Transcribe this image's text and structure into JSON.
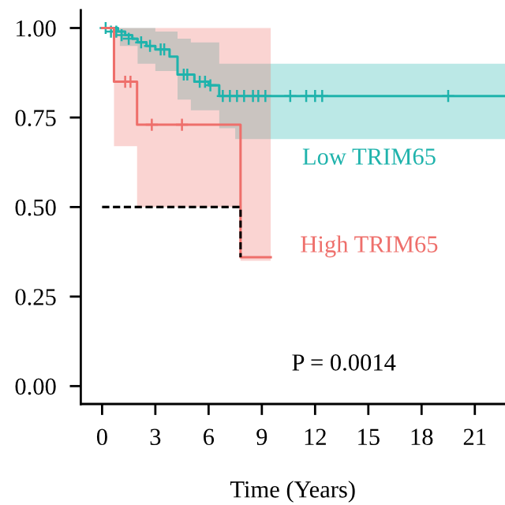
{
  "chart_data": {
    "type": "step",
    "xlabel": "Time (Years)",
    "xlim": [
      -1.2,
      22.7
    ],
    "ylim": [
      -0.05,
      1.05
    ],
    "xticks": [
      0,
      3,
      6,
      9,
      12,
      15,
      18,
      21
    ],
    "yticks": [
      {
        "value": 0,
        "label": "0.00"
      },
      {
        "value": 0.25,
        "label": "0.25"
      },
      {
        "value": 0.5,
        "label": "0.50"
      },
      {
        "value": 0.75,
        "label": "0.75"
      },
      {
        "value": 1,
        "label": "1.00"
      }
    ],
    "grid": false,
    "legend": false,
    "annotations": [
      "P = 0.0014"
    ],
    "series": [
      {
        "name": "Low TRIM65",
        "color": "#1fb3ac",
        "x": [
          0,
          0.9,
          1,
          1.3,
          1.7,
          2.0,
          2.5,
          3.0,
          3.8,
          4.25,
          5.0,
          5.2,
          6.0,
          6.6,
          7.5,
          22.7
        ],
        "values": [
          1.0,
          0.99,
          0.99,
          0.98,
          0.97,
          0.96,
          0.95,
          0.94,
          0.92,
          0.87,
          0.87,
          0.85,
          0.84,
          0.81,
          0.81,
          0.81
        ],
        "upper": [
          1,
          1,
          1,
          1,
          1,
          1,
          1,
          0.99,
          0.99,
          0.97,
          0.96,
          0.96,
          0.96,
          0.9,
          0.9,
          0.9
        ],
        "lower": [
          1,
          1,
          0.95,
          0.95,
          0.95,
          0.9,
          0.9,
          0.88,
          0.88,
          0.8,
          0.77,
          0.77,
          0.77,
          0.72,
          0.69,
          0.69
        ]
      },
      {
        "name": "High TRIM65",
        "color": "#ee6f6b",
        "x": [
          0,
          0.67,
          1.97,
          7.8,
          9.5
        ],
        "values": [
          1.0,
          0.85,
          0.73,
          0.36,
          0.36
        ],
        "upper": [
          1,
          1,
          1,
          1,
          1
        ],
        "lower": [
          1,
          0.67,
          0.5,
          0.35,
          0.35
        ]
      },
      {
        "type": "line",
        "color": "#000000",
        "line_style": "dashed",
        "marker": "none",
        "x": [
          0,
          7.8,
          7.8
        ],
        "values": [
          0.5,
          0.5,
          0.36
        ]
      },
      {
        "type": "scatter",
        "color": "#1fb3ac",
        "marker": "cross",
        "x": [
          0.2,
          0.5,
          0.8,
          1.1,
          1.5,
          2.2,
          2.7,
          3.3,
          3.5,
          4.6,
          4.8,
          5.5,
          5.8,
          6.1,
          6.8,
          7.2,
          7.6,
          8.0,
          8.5,
          8.8,
          9.2,
          10.6,
          11.5,
          12.0,
          12.4,
          19.5
        ],
        "values": [
          1.0,
          0.99,
          0.99,
          0.98,
          0.97,
          0.96,
          0.95,
          0.94,
          0.94,
          0.87,
          0.87,
          0.85,
          0.85,
          0.84,
          0.81,
          0.81,
          0.81,
          0.81,
          0.81,
          0.81,
          0.81,
          0.81,
          0.81,
          0.81,
          0.81,
          0.81
        ]
      },
      {
        "type": "scatter",
        "color": "#ee6f6b",
        "marker": "cross",
        "x": [
          1.3,
          1.6,
          2.8,
          4.5
        ],
        "values": [
          0.85,
          0.85,
          0.73,
          0.73
        ]
      }
    ]
  }
}
